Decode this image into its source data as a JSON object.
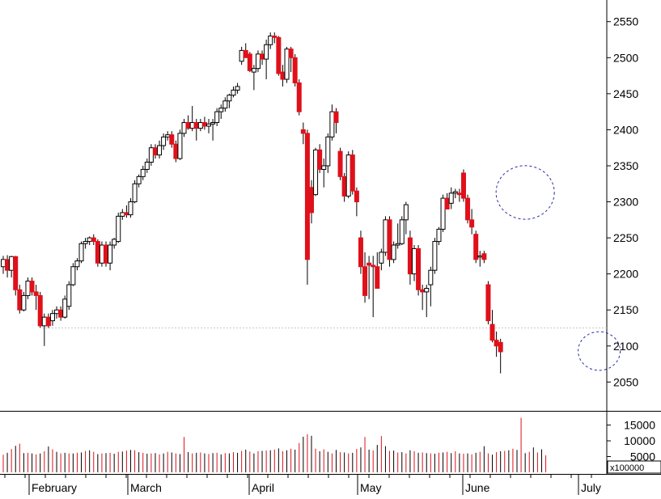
{
  "chart_data": [
    {
      "type": "candlestick",
      "title": "",
      "xlabel": "",
      "ylabel": "",
      "ylim": [
        2010,
        2580
      ],
      "yticks": [
        2050,
        2100,
        2150,
        2200,
        2250,
        2300,
        2350,
        2400,
        2450,
        2500,
        2550
      ],
      "x_tick_labels": [
        "February",
        "March",
        "April",
        "May",
        "June",
        "July"
      ],
      "reference_line": 2125,
      "colors": {
        "up_body": "#ffffff",
        "down_body": "#e0101a",
        "outline": "#000000",
        "annotation": "#2a2aa8",
        "reference": "#c8c8c8"
      },
      "annotations": [
        {
          "kind": "dashed-circle",
          "x_index": 127,
          "y": 2313
        },
        {
          "kind": "dashed-circle",
          "x_index": 145,
          "y": 2093
        }
      ],
      "series": [
        {
          "values": [
            {
              "o": 2210,
              "h": 2225,
              "l": 2200,
              "c": 2220
            },
            {
              "o": 2220,
              "h": 2226,
              "l": 2195,
              "c": 2205
            },
            {
              "o": 2205,
              "h": 2225,
              "l": 2195,
              "c": 2224
            },
            {
              "o": 2224,
              "h": 2225,
              "l": 2170,
              "c": 2178
            },
            {
              "o": 2178,
              "h": 2185,
              "l": 2145,
              "c": 2150
            },
            {
              "o": 2150,
              "h": 2175,
              "l": 2148,
              "c": 2170
            },
            {
              "o": 2170,
              "h": 2195,
              "l": 2165,
              "c": 2190
            },
            {
              "o": 2190,
              "h": 2195,
              "l": 2170,
              "c": 2175
            },
            {
              "o": 2175,
              "h": 2185,
              "l": 2150,
              "c": 2170
            },
            {
              "o": 2170,
              "h": 2175,
              "l": 2125,
              "c": 2128
            },
            {
              "o": 2128,
              "h": 2145,
              "l": 2100,
              "c": 2140
            },
            {
              "o": 2140,
              "h": 2145,
              "l": 2125,
              "c": 2128
            },
            {
              "o": 2135,
              "h": 2150,
              "l": 2128,
              "c": 2145
            },
            {
              "o": 2145,
              "h": 2155,
              "l": 2138,
              "c": 2150
            },
            {
              "o": 2150,
              "h": 2155,
              "l": 2135,
              "c": 2140
            },
            {
              "o": 2140,
              "h": 2170,
              "l": 2138,
              "c": 2165
            },
            {
              "o": 2155,
              "h": 2190,
              "l": 2150,
              "c": 2185
            },
            {
              "o": 2185,
              "h": 2215,
              "l": 2183,
              "c": 2210
            },
            {
              "o": 2210,
              "h": 2222,
              "l": 2205,
              "c": 2218
            },
            {
              "o": 2218,
              "h": 2245,
              "l": 2215,
              "c": 2242
            },
            {
              "o": 2242,
              "h": 2250,
              "l": 2235,
              "c": 2245
            },
            {
              "o": 2245,
              "h": 2252,
              "l": 2240,
              "c": 2250
            },
            {
              "o": 2250,
              "h": 2255,
              "l": 2240,
              "c": 2245
            },
            {
              "o": 2245,
              "h": 2248,
              "l": 2210,
              "c": 2215
            },
            {
              "o": 2215,
              "h": 2245,
              "l": 2210,
              "c": 2240
            },
            {
              "o": 2240,
              "h": 2245,
              "l": 2210,
              "c": 2215
            },
            {
              "o": 2215,
              "h": 2245,
              "l": 2205,
              "c": 2240
            },
            {
              "o": 2240,
              "h": 2250,
              "l": 2235,
              "c": 2248
            },
            {
              "o": 2245,
              "h": 2285,
              "l": 2243,
              "c": 2280
            },
            {
              "o": 2280,
              "h": 2290,
              "l": 2275,
              "c": 2285
            },
            {
              "o": 2285,
              "h": 2295,
              "l": 2278,
              "c": 2282
            },
            {
              "o": 2282,
              "h": 2305,
              "l": 2278,
              "c": 2300
            },
            {
              "o": 2300,
              "h": 2330,
              "l": 2298,
              "c": 2325
            },
            {
              "o": 2325,
              "h": 2338,
              "l": 2320,
              "c": 2335
            },
            {
              "o": 2335,
              "h": 2350,
              "l": 2330,
              "c": 2345
            },
            {
              "o": 2345,
              "h": 2360,
              "l": 2340,
              "c": 2355
            },
            {
              "o": 2355,
              "h": 2380,
              "l": 2350,
              "c": 2375
            },
            {
              "o": 2375,
              "h": 2380,
              "l": 2360,
              "c": 2365
            },
            {
              "o": 2365,
              "h": 2385,
              "l": 2360,
              "c": 2378
            },
            {
              "o": 2378,
              "h": 2395,
              "l": 2372,
              "c": 2390
            },
            {
              "o": 2390,
              "h": 2398,
              "l": 2385,
              "c": 2393
            },
            {
              "o": 2393,
              "h": 2398,
              "l": 2375,
              "c": 2380
            },
            {
              "o": 2380,
              "h": 2385,
              "l": 2355,
              "c": 2360
            },
            {
              "o": 2360,
              "h": 2400,
              "l": 2358,
              "c": 2395
            },
            {
              "o": 2395,
              "h": 2415,
              "l": 2390,
              "c": 2410
            },
            {
              "o": 2410,
              "h": 2420,
              "l": 2400,
              "c": 2402
            },
            {
              "o": 2402,
              "h": 2433,
              "l": 2398,
              "c": 2410
            },
            {
              "o": 2410,
              "h": 2415,
              "l": 2385,
              "c": 2402
            },
            {
              "o": 2402,
              "h": 2415,
              "l": 2398,
              "c": 2410
            },
            {
              "o": 2410,
              "h": 2418,
              "l": 2400,
              "c": 2405
            },
            {
              "o": 2405,
              "h": 2415,
              "l": 2395,
              "c": 2408
            },
            {
              "o": 2408,
              "h": 2415,
              "l": 2385,
              "c": 2410
            },
            {
              "o": 2410,
              "h": 2430,
              "l": 2405,
              "c": 2425
            },
            {
              "o": 2425,
              "h": 2435,
              "l": 2415,
              "c": 2430
            },
            {
              "o": 2430,
              "h": 2445,
              "l": 2425,
              "c": 2440
            },
            {
              "o": 2440,
              "h": 2450,
              "l": 2430,
              "c": 2448
            },
            {
              "o": 2448,
              "h": 2460,
              "l": 2445,
              "c": 2455
            },
            {
              "o": 2455,
              "h": 2465,
              "l": 2450,
              "c": 2460
            },
            {
              "o": 2495,
              "h": 2515,
              "l": 2490,
              "c": 2510
            },
            {
              "o": 2510,
              "h": 2520,
              "l": 2500,
              "c": 2500
            },
            {
              "o": 2505,
              "h": 2508,
              "l": 2480,
              "c": 2482
            },
            {
              "o": 2480,
              "h": 2490,
              "l": 2455,
              "c": 2485
            },
            {
              "o": 2485,
              "h": 2510,
              "l": 2480,
              "c": 2505
            },
            {
              "o": 2505,
              "h": 2510,
              "l": 2490,
              "c": 2498
            },
            {
              "o": 2498,
              "h": 2525,
              "l": 2470,
              "c": 2518
            },
            {
              "o": 2518,
              "h": 2535,
              "l": 2512,
              "c": 2530
            },
            {
              "o": 2530,
              "h": 2535,
              "l": 2520,
              "c": 2528
            },
            {
              "o": 2528,
              "h": 2530,
              "l": 2475,
              "c": 2478
            },
            {
              "o": 2480,
              "h": 2490,
              "l": 2460,
              "c": 2470
            },
            {
              "o": 2470,
              "h": 2515,
              "l": 2465,
              "c": 2512
            },
            {
              "o": 2512,
              "h": 2515,
              "l": 2480,
              "c": 2500
            },
            {
              "o": 2500,
              "h": 2505,
              "l": 2460,
              "c": 2465
            },
            {
              "o": 2465,
              "h": 2470,
              "l": 2420,
              "c": 2425
            },
            {
              "o": 2400,
              "h": 2410,
              "l": 2380,
              "c": 2395
            },
            {
              "o": 2395,
              "h": 2400,
              "l": 2185,
              "c": 2220
            },
            {
              "o": 2320,
              "h": 2330,
              "l": 2270,
              "c": 2285
            },
            {
              "o": 2310,
              "h": 2375,
              "l": 2308,
              "c": 2372
            },
            {
              "o": 2372,
              "h": 2380,
              "l": 2340,
              "c": 2345
            },
            {
              "o": 2345,
              "h": 2360,
              "l": 2320,
              "c": 2350
            },
            {
              "o": 2350,
              "h": 2395,
              "l": 2340,
              "c": 2390
            },
            {
              "o": 2390,
              "h": 2435,
              "l": 2385,
              "c": 2425
            },
            {
              "o": 2425,
              "h": 2430,
              "l": 2395,
              "c": 2410
            },
            {
              "o": 2370,
              "h": 2375,
              "l": 2330,
              "c": 2335
            },
            {
              "o": 2335,
              "h": 2340,
              "l": 2300,
              "c": 2308
            },
            {
              "o": 2308,
              "h": 2370,
              "l": 2305,
              "c": 2365
            },
            {
              "o": 2365,
              "h": 2372,
              "l": 2310,
              "c": 2315
            },
            {
              "o": 2315,
              "h": 2320,
              "l": 2280,
              "c": 2300
            },
            {
              "o": 2250,
              "h": 2260,
              "l": 2200,
              "c": 2210
            },
            {
              "o": 2210,
              "h": 2230,
              "l": 2160,
              "c": 2170
            },
            {
              "o": 2215,
              "h": 2225,
              "l": 2165,
              "c": 2212
            },
            {
              "o": 2212,
              "h": 2225,
              "l": 2140,
              "c": 2210
            },
            {
              "o": 2210,
              "h": 2230,
              "l": 2180,
              "c": 2180
            },
            {
              "o": 2215,
              "h": 2235,
              "l": 2205,
              "c": 2230
            },
            {
              "o": 2230,
              "h": 2280,
              "l": 2225,
              "c": 2275
            },
            {
              "o": 2275,
              "h": 2280,
              "l": 2210,
              "c": 2220
            },
            {
              "o": 2220,
              "h": 2245,
              "l": 2215,
              "c": 2240
            },
            {
              "o": 2240,
              "h": 2270,
              "l": 2235,
              "c": 2242
            },
            {
              "o": 2242,
              "h": 2280,
              "l": 2240,
              "c": 2275
            },
            {
              "o": 2275,
              "h": 2300,
              "l": 2255,
              "c": 2296
            },
            {
              "o": 2250,
              "h": 2260,
              "l": 2185,
              "c": 2200
            },
            {
              "o": 2200,
              "h": 2240,
              "l": 2190,
              "c": 2235
            },
            {
              "o": 2235,
              "h": 2240,
              "l": 2170,
              "c": 2178
            },
            {
              "o": 2178,
              "h": 2185,
              "l": 2150,
              "c": 2175
            },
            {
              "o": 2175,
              "h": 2185,
              "l": 2140,
              "c": 2180
            },
            {
              "o": 2185,
              "h": 2210,
              "l": 2155,
              "c": 2205
            },
            {
              "o": 2205,
              "h": 2250,
              "l": 2200,
              "c": 2245
            },
            {
              "o": 2245,
              "h": 2265,
              "l": 2240,
              "c": 2262
            },
            {
              "o": 2262,
              "h": 2310,
              "l": 2258,
              "c": 2305
            },
            {
              "o": 2305,
              "h": 2312,
              "l": 2290,
              "c": 2290
            },
            {
              "o": 2298,
              "h": 2320,
              "l": 2290,
              "c": 2312
            },
            {
              "o": 2312,
              "h": 2318,
              "l": 2305,
              "c": 2314
            },
            {
              "o": 2312,
              "h": 2318,
              "l": 2300,
              "c": 2310
            },
            {
              "o": 2340,
              "h": 2345,
              "l": 2300,
              "c": 2305
            },
            {
              "o": 2305,
              "h": 2310,
              "l": 2270,
              "c": 2275
            },
            {
              "o": 2275,
              "h": 2290,
              "l": 2255,
              "c": 2265
            },
            {
              "o": 2255,
              "h": 2260,
              "l": 2215,
              "c": 2220
            },
            {
              "o": 2225,
              "h": 2232,
              "l": 2210,
              "c": 2225
            },
            {
              "o": 2228,
              "h": 2232,
              "l": 2215,
              "c": 2220
            },
            {
              "o": 2185,
              "h": 2190,
              "l": 2130,
              "c": 2135
            },
            {
              "o": 2130,
              "h": 2150,
              "l": 2105,
              "c": 2108
            },
            {
              "o": 2108,
              "h": 2120,
              "l": 2085,
              "c": 2100
            },
            {
              "o": 2105,
              "h": 2110,
              "l": 2062,
              "c": 2092
            }
          ]
        }
      ]
    },
    {
      "type": "bar",
      "title": "",
      "ylabel": "",
      "yticks": [
        5000,
        10000,
        15000
      ],
      "ylim": [
        0,
        19000
      ],
      "scale_label": "x100000",
      "values": [
        5600,
        6200,
        7400,
        8400,
        9100,
        6100,
        6200,
        6000,
        5700,
        6000,
        6700,
        8200,
        7300,
        6500,
        6000,
        6200,
        6000,
        6000,
        6200,
        6300,
        6800,
        7000,
        6500,
        5800,
        6000,
        6100,
        6200,
        5900,
        6500,
        6600,
        6900,
        7100,
        7000,
        6400,
        6200,
        5900,
        6000,
        6100,
        5700,
        6000,
        6500,
        6300,
        6000,
        5800,
        11200,
        6400,
        6000,
        6200,
        6300,
        6000,
        5800,
        6100,
        6200,
        5700,
        6100,
        6000,
        6400,
        6200,
        6800,
        7200,
        6600,
        6000,
        6700,
        6800,
        6900,
        7000,
        7200,
        7600,
        6700,
        7000,
        7500,
        7200,
        9300,
        11300,
        12100,
        11600,
        7500,
        6700,
        7300,
        6500,
        6000,
        7100,
        6400,
        6300,
        6000,
        6200,
        7400,
        7900,
        11200,
        7200,
        6900,
        8700,
        11500,
        8300,
        6800,
        6900,
        6300,
        6400,
        6000,
        7000,
        6700,
        6200,
        6300,
        6100,
        6000,
        5900,
        6200,
        6300,
        6500,
        6100,
        6700,
        6000,
        5900,
        6000,
        5700,
        6200,
        6500,
        8300,
        6000,
        5600,
        6400,
        6700,
        6800,
        7000,
        7500,
        7100,
        17300,
        6100,
        6500,
        7900,
        6300,
        7300,
        5400
      ]
    }
  ]
}
